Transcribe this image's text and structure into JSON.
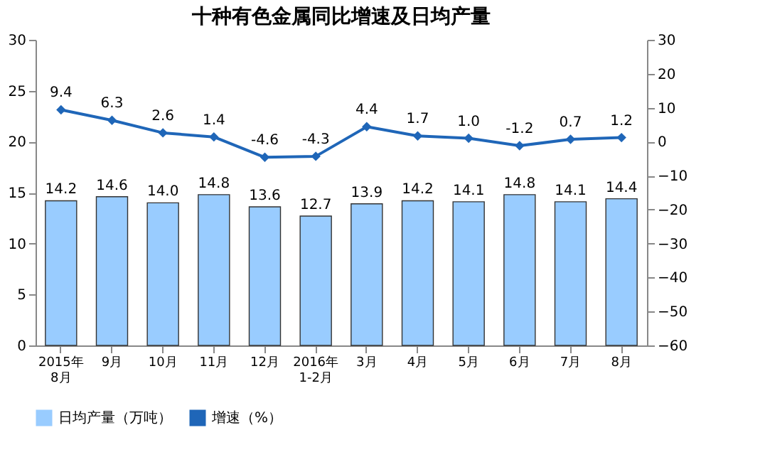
{
  "chart_data": {
    "type": "bar",
    "title": "十种有色金属同比增速及日均产量",
    "categories": [
      "2015年\n8月",
      "9月",
      "10月",
      "11月",
      "12月",
      "2016年\n1-2月",
      "3月",
      "4月",
      "5月",
      "6月",
      "7月",
      "8月"
    ],
    "series": [
      {
        "name": "日均产量（万吨）",
        "color": "#99ccff",
        "values": [
          14.2,
          14.6,
          14.0,
          14.8,
          13.6,
          12.7,
          13.9,
          14.2,
          14.1,
          14.8,
          14.1,
          14.4
        ],
        "value_labels": [
          "14.2",
          "14.6",
          "14.0",
          "14.8",
          "13.6",
          "12.7",
          "13.9",
          "14.2",
          "14.1",
          "14.8",
          "14.1",
          "14.4"
        ]
      },
      {
        "name": "增速（%）",
        "color": "#1f66b8",
        "type": "line",
        "axis": "y2",
        "values": [
          9.4,
          6.3,
          2.6,
          1.4,
          -4.6,
          -4.3,
          4.4,
          1.7,
          1.0,
          -1.2,
          0.7,
          1.2
        ],
        "value_labels": [
          "9.4",
          "6.3",
          "2.6",
          "1.4",
          "-4.6",
          "-4.3",
          "4.4",
          "1.7",
          "1.0",
          "-1.2",
          "0.7",
          "1.2"
        ]
      }
    ],
    "ylim": [
      0,
      30
    ],
    "yticks": [
      0,
      5,
      10,
      15,
      20,
      25,
      30
    ],
    "y2lim": [
      -60,
      30
    ],
    "y2ticks": [
      -60,
      -50,
      -40,
      -30,
      -20,
      -10,
      0,
      10,
      20,
      30
    ],
    "legend": "bottom",
    "marker": "diamond"
  }
}
